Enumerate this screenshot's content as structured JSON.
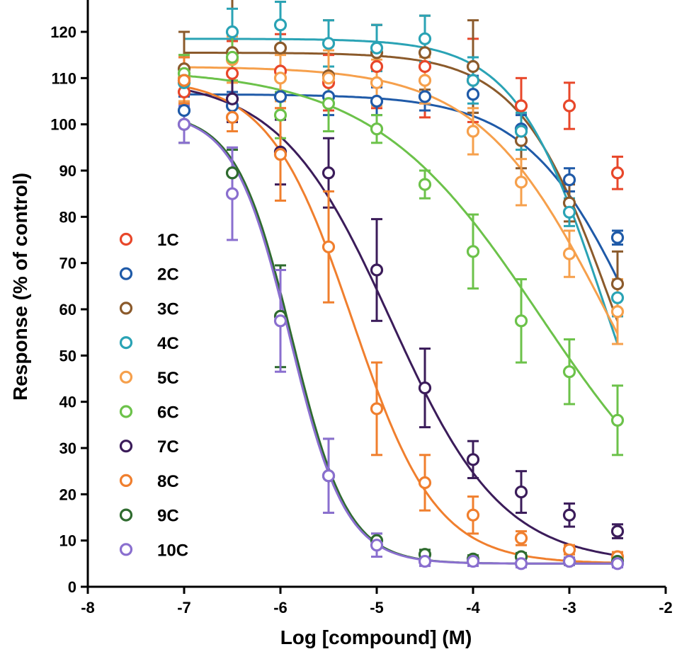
{
  "chart_data": {
    "type": "scatter",
    "title": "",
    "xlabel": "Log [compound] (M)",
    "ylabel": "Response (% of control)",
    "xlim": [
      -8,
      -2
    ],
    "ylim": [
      0,
      125
    ],
    "x_ticks": [
      "-8",
      "-7",
      "-6",
      "-5",
      "-4",
      "-3",
      "-2"
    ],
    "y_ticks": [
      "0",
      "10",
      "20",
      "30",
      "40",
      "50",
      "60",
      "70",
      "80",
      "90",
      "100",
      "110",
      "120"
    ],
    "grid": false,
    "legend_position": "left-middle",
    "x": [
      -7,
      -6.5,
      -6,
      -5.5,
      -5,
      -4.5,
      -4,
      -3.5,
      -3,
      -2.5
    ],
    "series": [
      {
        "name": "1C",
        "color": "#e8472a",
        "values": [
          107,
          111,
          111.5,
          109,
          112.5,
          112.5,
          109.5,
          104,
          104,
          89.5
        ],
        "errors": [
          4,
          7,
          8,
          6,
          9,
          11,
          9,
          6,
          5,
          3.5
        ],
        "fit": null
      },
      {
        "name": "2C",
        "color": "#1f5aa8",
        "values": [
          103,
          104,
          106,
          106,
          105,
          106,
          106.5,
          99,
          88,
          75.5
        ],
        "errors": [
          3,
          3,
          4,
          4,
          3,
          3,
          4,
          3,
          2.5,
          1.5
        ],
        "fit": {
          "top": 106.5,
          "bottom": 5,
          "logec50": -2.25,
          "hill": 0.75
        }
      },
      {
        "name": "3C",
        "color": "#8b5a2b",
        "values": [
          112,
          115.5,
          116.5,
          110.5,
          115.5,
          115.5,
          112.5,
          96.5,
          83,
          65.5
        ],
        "errors": [
          8,
          12,
          10,
          12,
          6,
          8,
          10,
          6,
          4,
          7
        ],
        "fit": {
          "top": 115.5,
          "bottom": 5,
          "logec50": -2.55,
          "hill": 0.9
        }
      },
      {
        "name": "4C",
        "color": "#2aa3b5",
        "values": [
          109,
          120,
          121.5,
          117.5,
          116.5,
          118.5,
          109.5,
          98.5,
          81,
          62.5
        ],
        "errors": [
          6,
          5,
          5,
          5,
          5,
          5,
          5,
          4,
          3,
          4
        ],
        "fit": {
          "top": 118.5,
          "bottom": 5,
          "logec50": -2.65,
          "hill": 0.95
        }
      },
      {
        "name": "5C",
        "color": "#f6a04c",
        "values": [
          110,
          114,
          110,
          110,
          109,
          109.5,
          98.5,
          87.5,
          72,
          59.5
        ],
        "errors": [
          5,
          5,
          5,
          6,
          5,
          5,
          5,
          5,
          5,
          7
        ],
        "fit": {
          "top": 112.5,
          "bottom": 5,
          "logec50": -2.6,
          "hill": 0.65
        }
      },
      {
        "name": "6C",
        "color": "#6cc24a",
        "values": [
          111,
          114.5,
          102,
          104.5,
          99,
          87,
          72.5,
          57.5,
          46.5,
          36
        ],
        "errors": [
          4,
          5,
          5,
          6,
          3,
          3,
          8,
          9,
          7,
          7.5
        ],
        "fit": {
          "top": 112,
          "bottom": 5,
          "logec50": -3.3,
          "hill": 0.5
        }
      },
      {
        "name": "7C",
        "color": "#3b1c5a",
        "values": [
          109.5,
          105.5,
          94,
          89.5,
          68.5,
          43,
          27.5,
          20.5,
          15.5,
          12
        ],
        "errors": [
          5,
          5,
          7,
          7.5,
          11,
          8.5,
          4,
          4.5,
          2.5,
          1.5
        ],
        "fit": {
          "top": 110,
          "bottom": 5,
          "logec50": -4.85,
          "hill": 0.75
        }
      },
      {
        "name": "8C",
        "color": "#f07f2e",
        "values": [
          109.5,
          101.5,
          93.5,
          73.5,
          38.5,
          22.5,
          15.5,
          10.5,
          8,
          6.5
        ],
        "errors": [
          5,
          3,
          10,
          12,
          10,
          6,
          4,
          1.5,
          1,
          1
        ],
        "fit": {
          "top": 110,
          "bottom": 5,
          "logec50": -5.25,
          "hill": 1.0
        }
      },
      {
        "name": "9C",
        "color": "#2e6b2e",
        "values": [
          100,
          89.5,
          58.5,
          24,
          10,
          7,
          6,
          6.5,
          5.5,
          5.5
        ],
        "errors": [
          4,
          5,
          11,
          8,
          1.5,
          1,
          0.8,
          0.8,
          0.8,
          0.8
        ],
        "fit": {
          "top": 102.5,
          "bottom": 5,
          "logec50": -5.88,
          "hill": 1.5
        }
      },
      {
        "name": "10C",
        "color": "#8a6fcf",
        "values": [
          100,
          85,
          57.5,
          24,
          9,
          5.5,
          5.5,
          5,
          5.5,
          5
        ],
        "errors": [
          4,
          10,
          11,
          8,
          2.5,
          1,
          1,
          0.8,
          0.8,
          0.8
        ],
        "fit": {
          "top": 102.5,
          "bottom": 5,
          "logec50": -5.9,
          "hill": 1.5
        }
      }
    ]
  }
}
